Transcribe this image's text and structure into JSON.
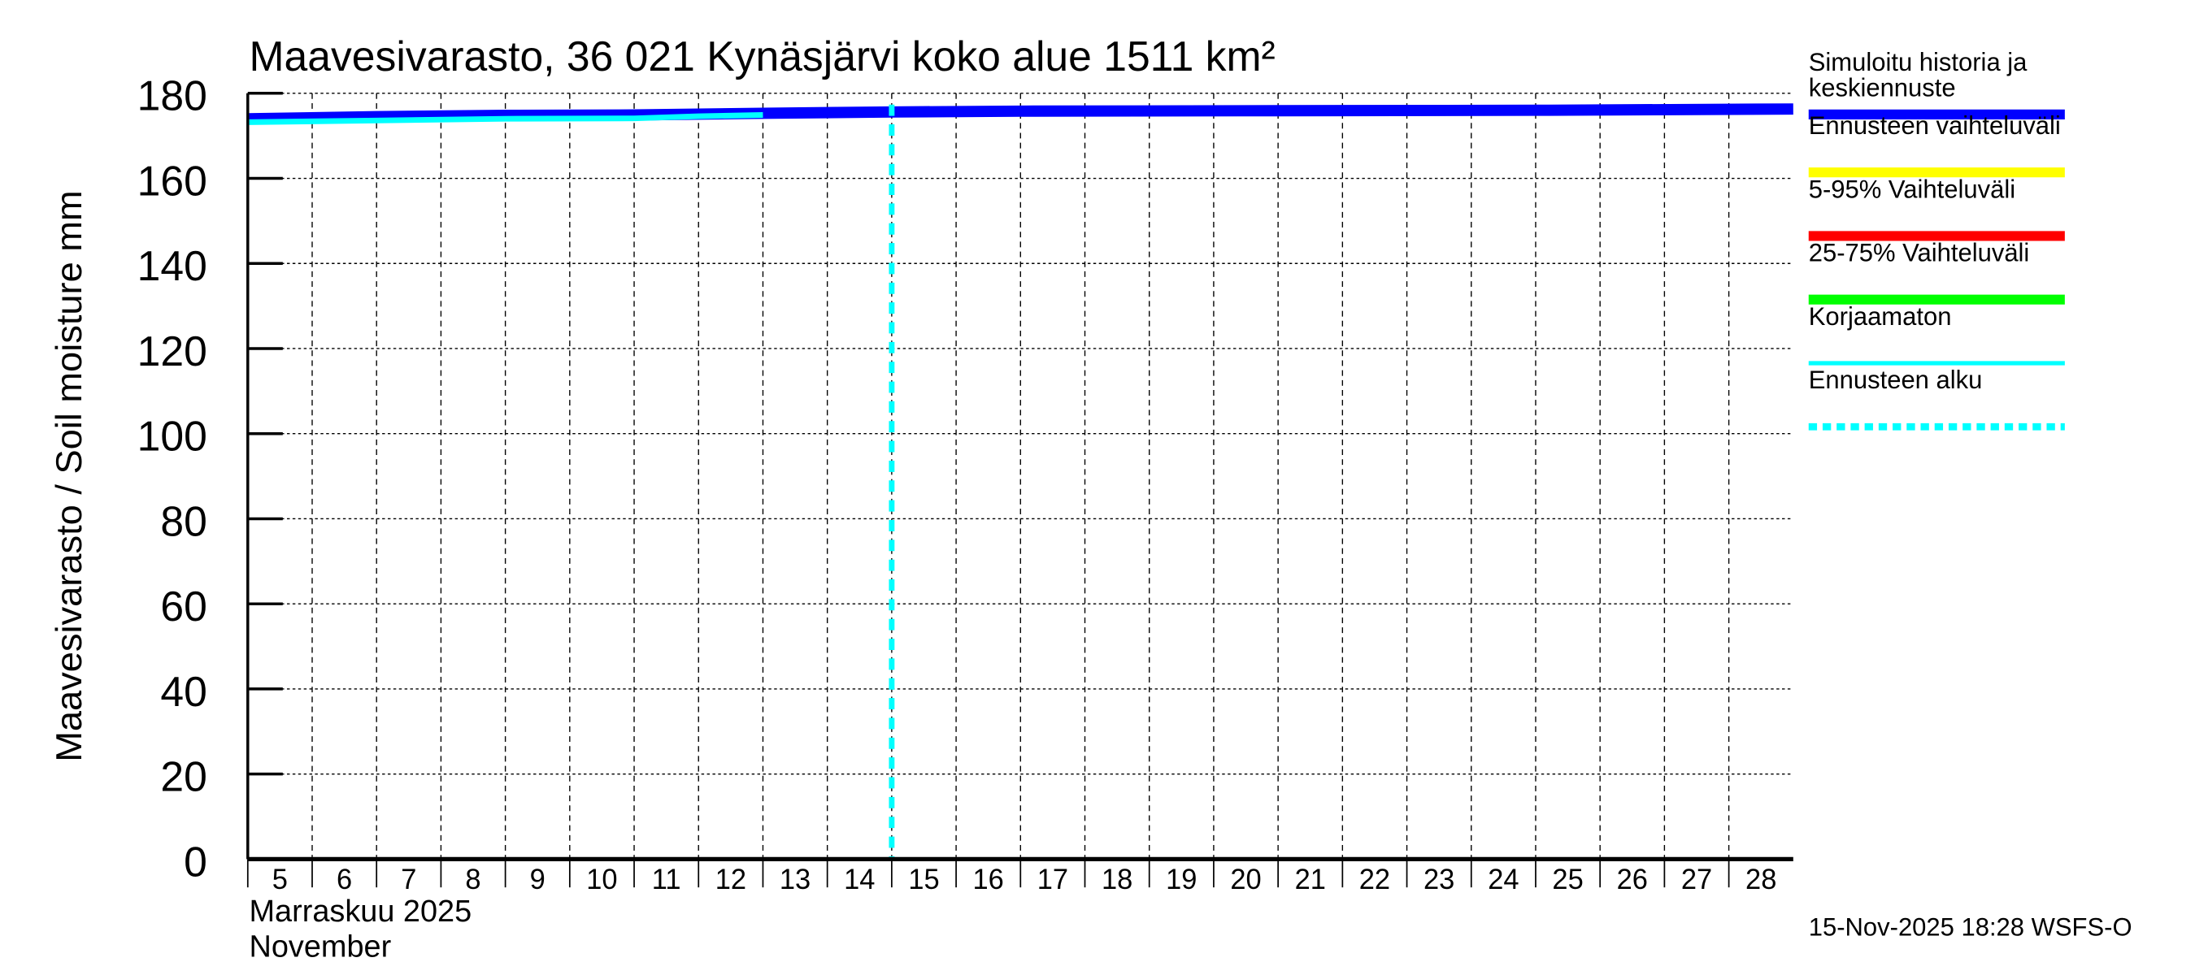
{
  "chart_data": {
    "type": "line",
    "title": "Maavesivarasto, 36 021 Kynäsjärvi koko alue 1511 km²",
    "ylabel": "Maavesivarasto / Soil moisture   mm",
    "xlabel_line1": "Marraskuu 2025",
    "xlabel_line2": "November",
    "ylim": [
      0,
      180
    ],
    "yticks": [
      0,
      20,
      40,
      60,
      80,
      100,
      120,
      140,
      160,
      180
    ],
    "xlim": [
      "2025-11-05",
      "2025-11-29"
    ],
    "xtick_labels": [
      "5",
      "6",
      "7",
      "8",
      "9",
      "10",
      "11",
      "12",
      "13",
      "14",
      "15",
      "16",
      "17",
      "18",
      "19",
      "20",
      "21",
      "22",
      "23",
      "24",
      "25",
      "26",
      "27",
      "28"
    ],
    "grid": true,
    "legend_position": "right",
    "forecast_start": "2025-11-15",
    "series": [
      {
        "name": "Simuloitu historia ja keskiennuste",
        "color": "#0000ff",
        "x": [
          "2025-11-05",
          "2025-11-07",
          "2025-11-09",
          "2025-11-11",
          "2025-11-13",
          "2025-11-15",
          "2025-11-17",
          "2025-11-21",
          "2025-11-25",
          "2025-11-29"
        ],
        "y": [
          174.0,
          174.5,
          174.8,
          174.9,
          175.3,
          175.6,
          175.8,
          175.9,
          176.0,
          176.3
        ]
      },
      {
        "name": "Korjaamaton",
        "color": "#00ffff",
        "x": [
          "2025-11-05",
          "2025-11-07",
          "2025-11-09",
          "2025-11-11",
          "2025-11-12",
          "2025-11-13"
        ],
        "y": [
          173.2,
          173.6,
          174.0,
          174.1,
          174.6,
          174.9
        ]
      }
    ],
    "legend": [
      {
        "label": "Simuloitu historia ja",
        "label2": "keskiennuste",
        "color": "#0000ff",
        "style": "thick"
      },
      {
        "label": "Ennusteen vaihteluväli",
        "color": "#ffff00",
        "style": "thick"
      },
      {
        "label": "5-95% Vaihteluväli",
        "color": "#ff0000",
        "style": "thick"
      },
      {
        "label": "25-75% Vaihteluväli",
        "color": "#00ff00",
        "style": "thick"
      },
      {
        "label": "Korjaamaton",
        "color": "#00ffff",
        "style": "thin"
      },
      {
        "label": "Ennusteen alku",
        "color": "#00ffff",
        "style": "dotted"
      }
    ]
  },
  "footer": "15-Nov-2025 18:28 WSFS-O"
}
